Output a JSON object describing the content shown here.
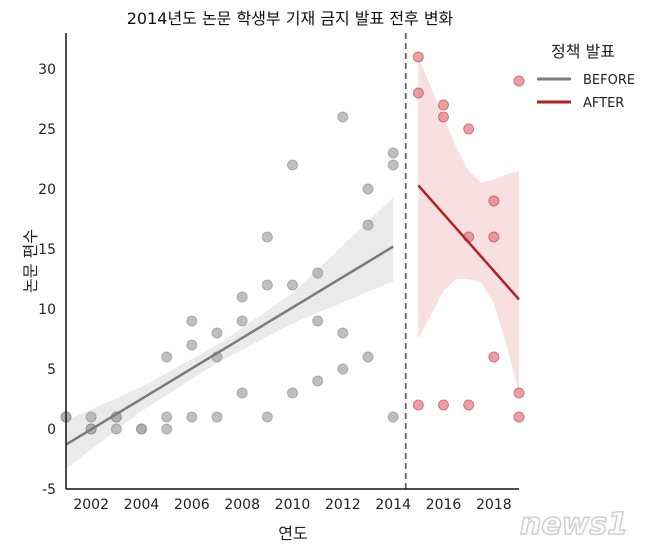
{
  "chart_data": {
    "type": "scatter",
    "title": "2014년도 논문 학생부 기재 금지 발표 전후 변화",
    "xlabel": "연도",
    "ylabel": "논문 편수",
    "xlim": [
      2001,
      2019
    ],
    "ylim": [
      -5,
      33
    ],
    "xticks": [
      2002,
      2004,
      2006,
      2008,
      2010,
      2012,
      2014,
      2016,
      2018
    ],
    "yticks": [
      -5,
      0,
      5,
      10,
      15,
      20,
      25,
      30
    ],
    "grid": false,
    "policy_line_x": 2014.5,
    "legend": {
      "title": "정책 발표",
      "placement": "right"
    },
    "series": [
      {
        "name": "BEFORE",
        "color": "#7a7a7a",
        "point_color": "#a9a9a9",
        "band_color": "#e6e6e6",
        "points": [
          [
            2001,
            1
          ],
          [
            2001,
            1
          ],
          [
            2002,
            1
          ],
          [
            2002,
            0
          ],
          [
            2002,
            0
          ],
          [
            2003,
            1
          ],
          [
            2003,
            1
          ],
          [
            2003,
            0
          ],
          [
            2004,
            0
          ],
          [
            2004,
            0
          ],
          [
            2005,
            6
          ],
          [
            2005,
            1
          ],
          [
            2005,
            0
          ],
          [
            2006,
            9
          ],
          [
            2006,
            7
          ],
          [
            2006,
            1
          ],
          [
            2007,
            8
          ],
          [
            2007,
            6
          ],
          [
            2007,
            1
          ],
          [
            2008,
            11
          ],
          [
            2008,
            9
          ],
          [
            2008,
            3
          ],
          [
            2009,
            16
          ],
          [
            2009,
            12
          ],
          [
            2009,
            1
          ],
          [
            2010,
            22
          ],
          [
            2010,
            12
          ],
          [
            2010,
            3
          ],
          [
            2011,
            13
          ],
          [
            2011,
            9
          ],
          [
            2011,
            4
          ],
          [
            2012,
            26
          ],
          [
            2012,
            8
          ],
          [
            2012,
            5
          ],
          [
            2013,
            20
          ],
          [
            2013,
            17
          ],
          [
            2013,
            6
          ],
          [
            2014,
            23
          ],
          [
            2014,
            22
          ],
          [
            2014,
            1
          ]
        ],
        "fit": [
          [
            2001,
            -1.3
          ],
          [
            2014,
            15.2
          ]
        ],
        "ci": {
          "x": [
            2001,
            2004,
            2007,
            2010,
            2014
          ],
          "lower": [
            -3.3,
            1.5,
            5.5,
            8.8,
            12.3
          ],
          "upper": [
            0.7,
            3.5,
            7.0,
            11.3,
            19.3
          ]
        }
      },
      {
        "name": "AFTER",
        "color": "#b22028",
        "point_color": "#e57f84",
        "band_color": "#f7d9db",
        "points": [
          [
            2015,
            31
          ],
          [
            2015,
            28
          ],
          [
            2015,
            2
          ],
          [
            2016,
            27
          ],
          [
            2016,
            26
          ],
          [
            2016,
            2
          ],
          [
            2017,
            25
          ],
          [
            2017,
            16
          ],
          [
            2017,
            2
          ],
          [
            2018,
            19
          ],
          [
            2018,
            16
          ],
          [
            2018,
            6
          ],
          [
            2019,
            29
          ],
          [
            2019,
            3
          ],
          [
            2019,
            1
          ]
        ],
        "fit": [
          [
            2015,
            20.3
          ],
          [
            2019,
            10.8
          ]
        ],
        "ci": {
          "x": [
            2015,
            2015.5,
            2016,
            2016.5,
            2017,
            2017.5,
            2018,
            2018.5,
            2019
          ],
          "lower": [
            7.5,
            9.5,
            11.5,
            12.5,
            12.5,
            12.2,
            10.5,
            7.0,
            3.0
          ],
          "upper": [
            31.0,
            28.5,
            26.0,
            23.5,
            21.5,
            20.5,
            20.8,
            21.2,
            21.5
          ]
        }
      }
    ]
  },
  "watermark": "news1"
}
